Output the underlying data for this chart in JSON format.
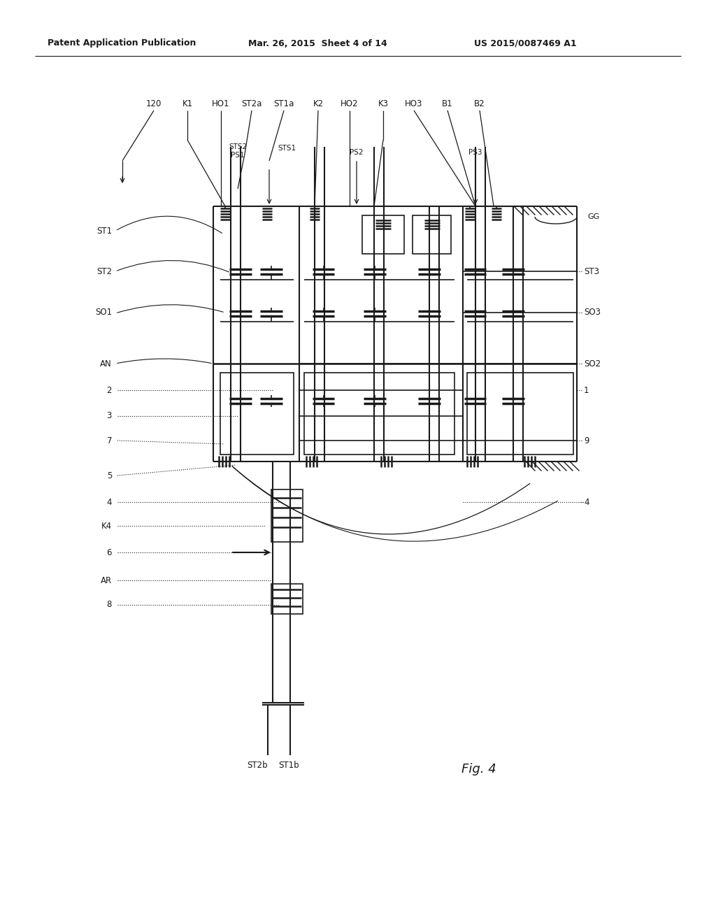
{
  "bg_color": "#ffffff",
  "lc": "#1a1a1a",
  "header_left": "Patent Application Publication",
  "header_mid": "Mar. 26, 2015  Sheet 4 of 14",
  "header_right": "US 2015/0087469 A1",
  "fig_label": "Fig. 4"
}
